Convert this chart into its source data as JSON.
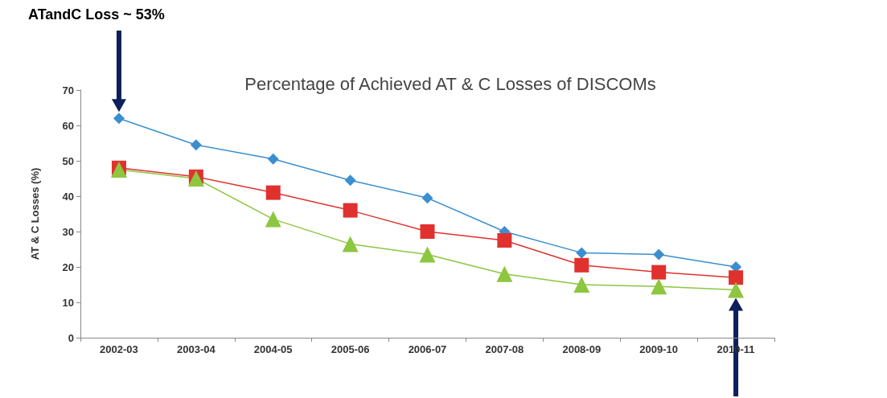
{
  "chart_data": {
    "type": "line",
    "title": "Percentage of Achieved AT & C Losses of DISCOMs",
    "ylabel": "AT & C Losses (%)",
    "categories": [
      "2002-03",
      "2003-04",
      "2004-05",
      "2005-06",
      "2006-07",
      "2007-08",
      "2008-09",
      "2009-10",
      "2010-11"
    ],
    "series": [
      {
        "color": "#3a8fd0",
        "marker": "diamond",
        "values": [
          62,
          54.5,
          50.5,
          44.5,
          39.5,
          30,
          24,
          23.5,
          20
        ]
      },
      {
        "color": "#e0312f",
        "marker": "square",
        "values": [
          48,
          45.5,
          41,
          36,
          30,
          27.5,
          20.5,
          18.5,
          17
        ]
      },
      {
        "color": "#8dc63f",
        "marker": "triangle",
        "values": [
          47.5,
          45,
          33.5,
          26.5,
          23.5,
          18,
          15,
          14.5,
          13.5
        ]
      }
    ],
    "ylim": [
      0,
      70
    ],
    "yticks": [
      0,
      10,
      20,
      30,
      40,
      50,
      60,
      70
    ],
    "grid": false,
    "annotations": [
      "ATandC Loss ~ 53%"
    ]
  }
}
